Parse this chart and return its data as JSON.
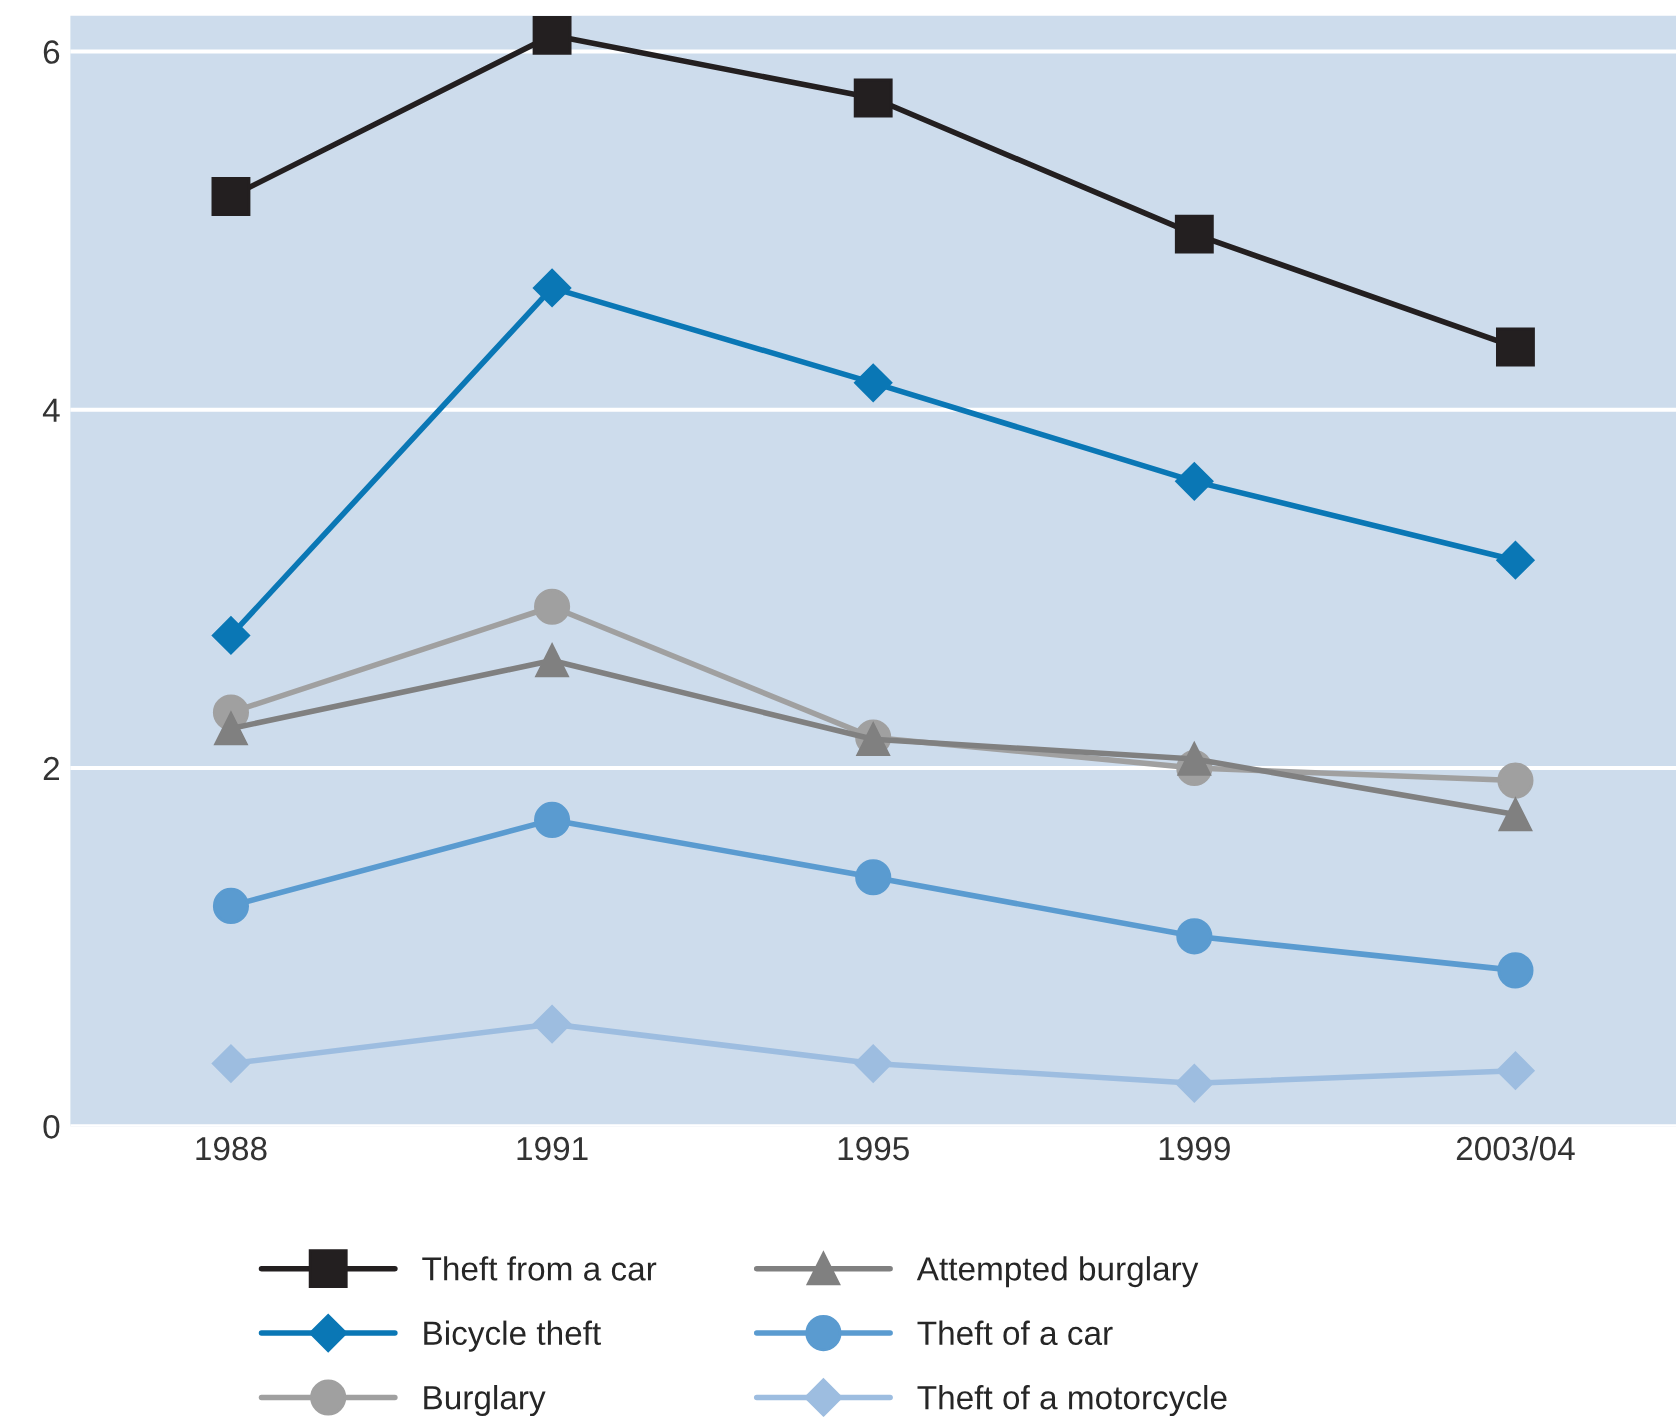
{
  "chart_data": {
    "type": "line",
    "categories": [
      "1988",
      "1991",
      "1995",
      "1999",
      "2003/04"
    ],
    "ylim": [
      0,
      6.2
    ],
    "yticks": [
      0,
      2,
      4,
      6
    ],
    "grid": "y",
    "legend": "bottom",
    "line_style": "solid",
    "series": [
      {
        "name": "Theft from a car",
        "color": "#231f20",
        "marker": "square",
        "values": [
          5.19,
          6.09,
          5.74,
          4.98,
          4.35
        ]
      },
      {
        "name": "Bicycle theft",
        "color": "#0a77b5",
        "marker": "diamond",
        "values": [
          2.74,
          4.68,
          4.15,
          3.6,
          3.16
        ]
      },
      {
        "name": "Burglary",
        "color": "#a0a0a0",
        "marker": "circle",
        "values": [
          2.31,
          2.9,
          2.17,
          2.0,
          1.93
        ]
      },
      {
        "name": "Attempted burglary",
        "color": "#808080",
        "marker": "triangle",
        "values": [
          2.22,
          2.6,
          2.16,
          2.05,
          1.74
        ]
      },
      {
        "name": "Theft of a car",
        "color": "#5a9bd0",
        "marker": "circle",
        "values": [
          1.23,
          1.71,
          1.39,
          1.06,
          0.87
        ]
      },
      {
        "name": "Theft of a motorcycle",
        "color": "#9dbde0",
        "marker": "diamond",
        "values": [
          0.35,
          0.57,
          0.35,
          0.24,
          0.31
        ]
      }
    ]
  }
}
